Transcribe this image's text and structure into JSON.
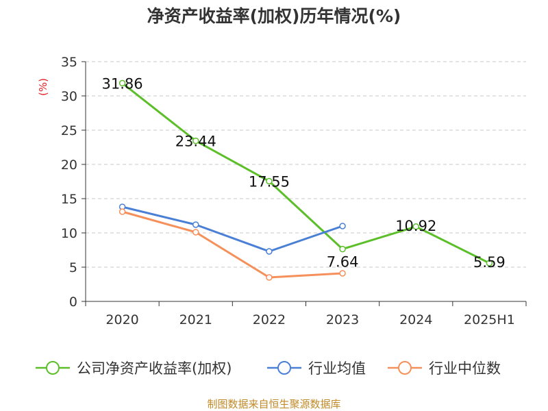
{
  "chart_data": {
    "type": "line",
    "title": "净资产收益率(加权)历年情况(%)",
    "ylabel": "(%)",
    "xlabel": "",
    "categories": [
      "2020",
      "2021",
      "2022",
      "2023",
      "2024",
      "2025H1"
    ],
    "ylim": [
      0,
      35
    ],
    "yticks": [
      "0",
      "5",
      "10",
      "15",
      "20",
      "25",
      "30",
      "35"
    ],
    "grid": "horizontal dashed",
    "legend_position": "bottom",
    "series": [
      {
        "name": "公司净资产收益率(加权)",
        "color": "#5cbf2a",
        "values": [
          31.86,
          23.44,
          17.55,
          7.64,
          10.92,
          5.59
        ],
        "labels": [
          "31.86",
          "23.44",
          "17.55",
          "7.64",
          "10.92",
          "5.59"
        ]
      },
      {
        "name": "行业均值",
        "color": "#4a7fd6",
        "values": [
          13.8,
          11.2,
          7.3,
          11.0,
          null,
          null
        ]
      },
      {
        "name": "行业中位数",
        "color": "#f5905a",
        "values": [
          13.1,
          10.1,
          3.5,
          4.1,
          null,
          null
        ]
      }
    ],
    "source": "制图数据来自恒生聚源数据库"
  }
}
